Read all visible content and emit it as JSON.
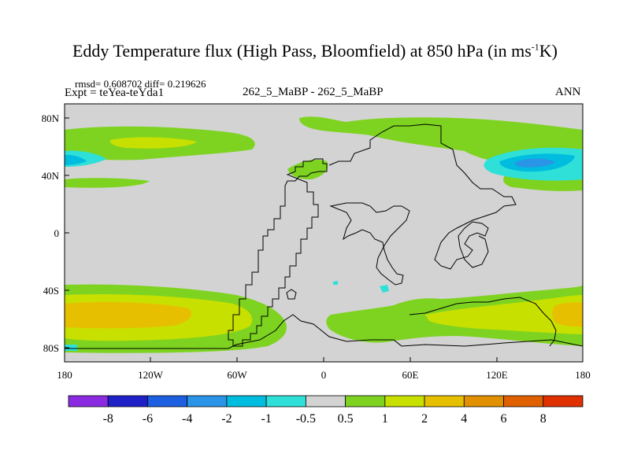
{
  "title": {
    "main": "Eddy Temperature flux (High Pass, Bloomfield) at 850 hPa (in ms",
    "superscript": "-1",
    "end": "K)"
  },
  "stats": "rmsd= 0.608702 diff= 0.219626",
  "expt": "Expt = teYea-teYda1",
  "center_label": "262_5_MaBP - 262_5_MaBP",
  "season": "ANN",
  "y_ticks": [
    "80N",
    "40N",
    "0",
    "40S",
    "80S"
  ],
  "x_ticks": [
    "180",
    "120W",
    "60W",
    "0",
    "60E",
    "120E",
    "180"
  ],
  "colorbar": {
    "labels": [
      "-8",
      "-6",
      "-4",
      "-2",
      "-1",
      "-0.5",
      "0.5",
      "1",
      "2",
      "4",
      "6",
      "8"
    ],
    "colors": [
      "#8a2be2",
      "#2020c8",
      "#1c5fe0",
      "#2a94e6",
      "#00bde0",
      "#2ee0d8",
      "#d3d3d3",
      "#7ed321",
      "#c8e000",
      "#e6c000",
      "#e09000",
      "#e06000",
      "#e03000"
    ]
  }
}
